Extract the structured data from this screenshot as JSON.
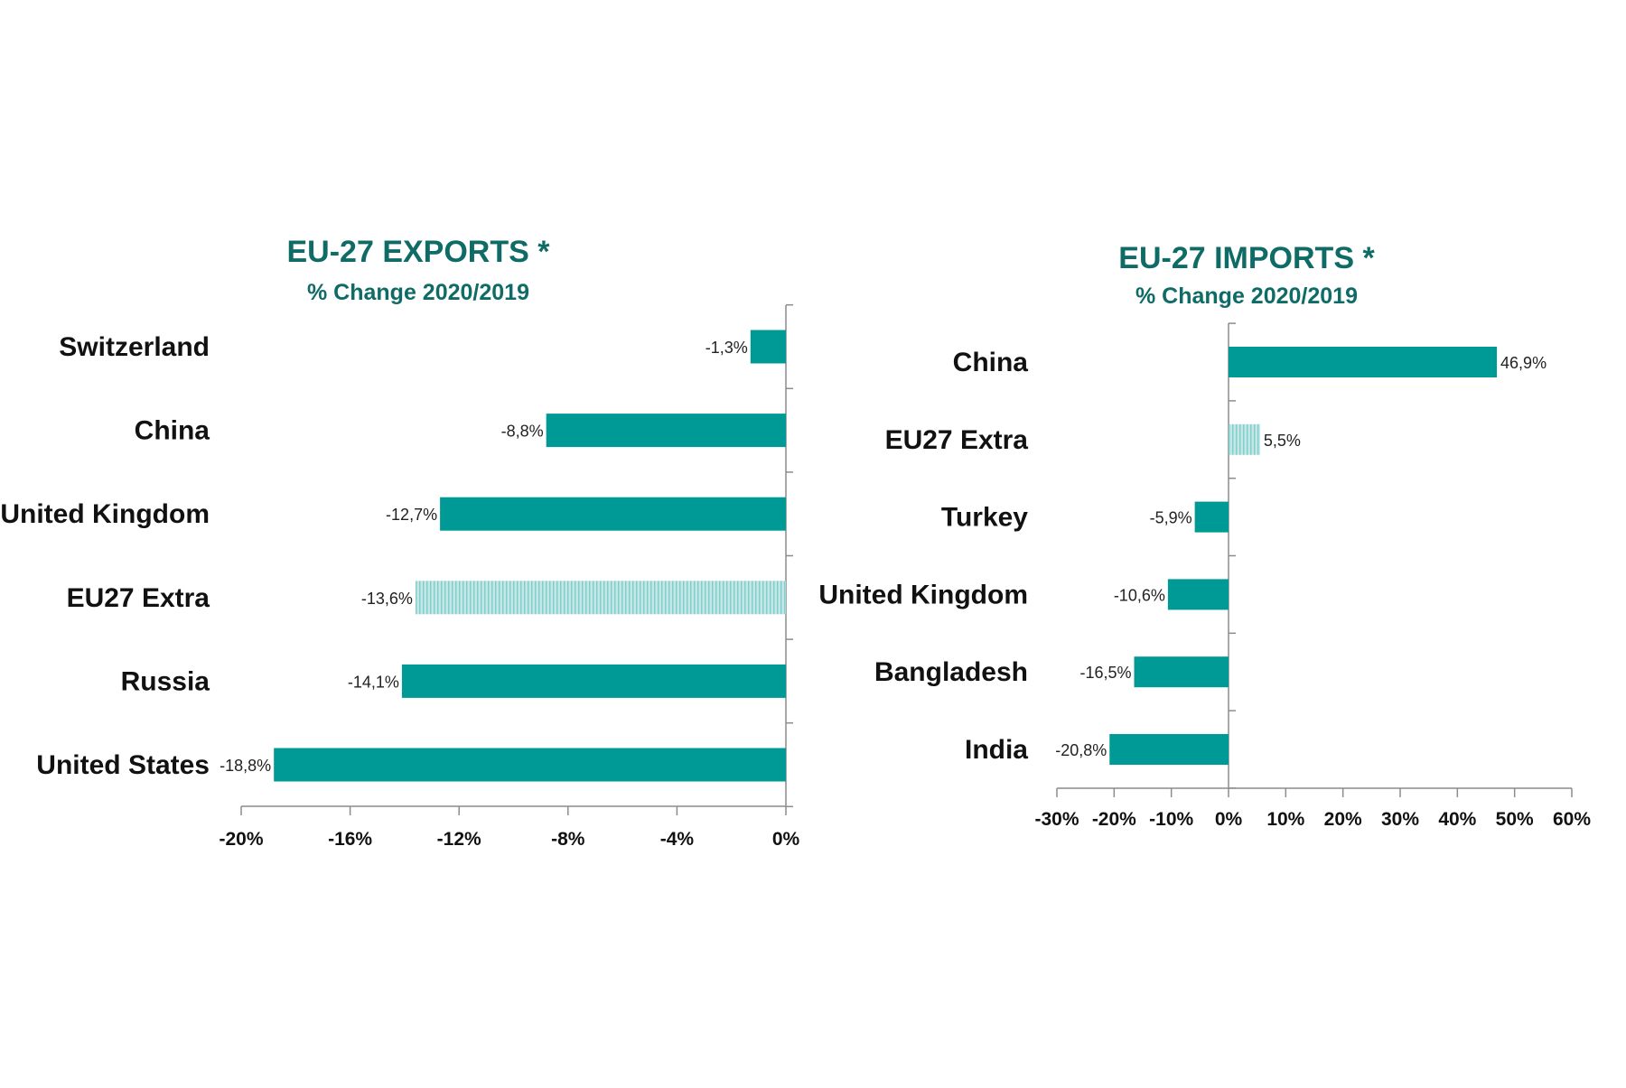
{
  "colors": {
    "bar": "#009a96",
    "highlight_bar": "#c4e6e5",
    "highlight_stripe": "#7ecfcc",
    "title": "#0e6b66",
    "axis": "#8c8c8c"
  },
  "chart_data": [
    {
      "type": "bar",
      "orientation": "horizontal",
      "title": "EU-27 EXPORTS *",
      "subtitle": "% Change 2020/2019",
      "categories": [
        "Switzerland",
        "China",
        "United Kingdom",
        "EU27 Extra",
        "Russia",
        "United States"
      ],
      "values": [
        -1.3,
        -8.8,
        -12.7,
        -13.6,
        -14.1,
        -18.8
      ],
      "value_labels": [
        "-1,3%",
        "-8,8%",
        "-12,7%",
        "-13,6%",
        "-14,1%",
        "-18,8%"
      ],
      "highlight_category": "EU27 Extra",
      "xlim": [
        -20,
        0
      ],
      "xticks": [
        -20,
        -16,
        -12,
        -8,
        -4,
        0
      ],
      "xtick_labels": [
        "-20%",
        "-16%",
        "-12%",
        "-8%",
        "-4%",
        "0%"
      ],
      "grid": false
    },
    {
      "type": "bar",
      "orientation": "horizontal",
      "title": "EU-27 IMPORTS *",
      "subtitle": "% Change 2020/2019",
      "categories": [
        "China",
        "EU27 Extra",
        "Turkey",
        "United Kingdom",
        "Bangladesh",
        "India"
      ],
      "values": [
        46.9,
        5.5,
        -5.9,
        -10.6,
        -16.5,
        -20.8
      ],
      "value_labels": [
        "46,9%",
        "5,5%",
        "-5,9%",
        "-10,6%",
        "-16,5%",
        "-20,8%"
      ],
      "highlight_category": "EU27 Extra",
      "xlim": [
        -30,
        60
      ],
      "xticks": [
        -30,
        -20,
        -10,
        0,
        10,
        20,
        30,
        40,
        50,
        60
      ],
      "xtick_labels": [
        "-30%",
        "-20%",
        "-10%",
        "0%",
        "10%",
        "20%",
        "30%",
        "40%",
        "50%",
        "60%"
      ],
      "grid": false
    }
  ]
}
